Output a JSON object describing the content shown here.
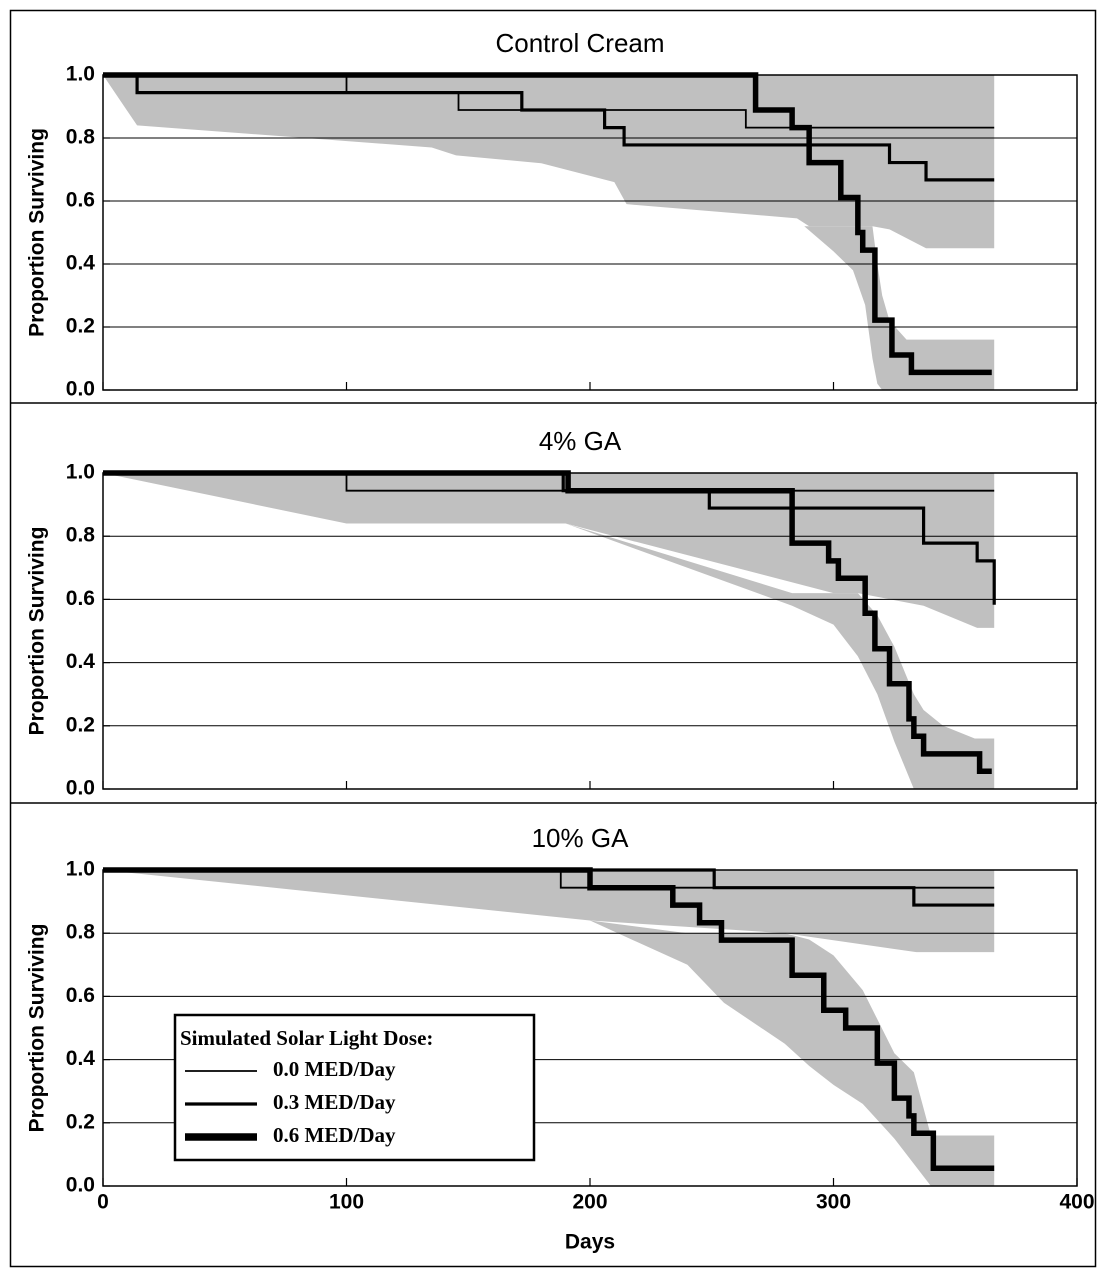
{
  "chart_data": [
    {
      "type": "step",
      "title": "Control Cream",
      "ylabel": "Proportion Surviving",
      "xlim": [
        0,
        400
      ],
      "xticks": [
        0,
        100,
        200,
        300,
        400
      ],
      "show_xtick_labels": false,
      "ylim": [
        0,
        1
      ],
      "yticks": [
        {
          "value": 0,
          "label": "0.0"
        },
        {
          "value": 0.2,
          "label": "0.2"
        },
        {
          "value": 0.4,
          "label": "0.4"
        },
        {
          "value": 0.6,
          "label": "0.6"
        },
        {
          "value": 0.8,
          "label": "0.8"
        },
        {
          "value": 1,
          "label": "1.0"
        }
      ],
      "grid": true,
      "band_color": "#c0c0c0",
      "bands": [
        {
          "x": [
            0,
            14,
            135,
            145,
            180,
            210,
            215,
            285,
            290,
            316,
            323,
            338,
            366
          ],
          "lower": [
            1,
            0.84,
            0.77,
            0.745,
            0.72,
            0.66,
            0.59,
            0.545,
            0.52,
            0.52,
            0.51,
            0.45,
            0.45
          ],
          "upper": [
            1,
            1,
            1,
            1,
            1,
            1,
            1,
            1,
            1,
            1,
            1,
            1,
            1
          ]
        },
        {
          "x": [
            288,
            300,
            308,
            313,
            316,
            318,
            320,
            323,
            330,
            366
          ],
          "lower": [
            0.52,
            0.44,
            0.38,
            0.27,
            0.1,
            0.02,
            0,
            0,
            0,
            0
          ],
          "upper": [
            0.52,
            0.52,
            0.52,
            0.52,
            0.52,
            0.4,
            0.3,
            0.22,
            0.16,
            0.16
          ]
        }
      ],
      "series": [
        {
          "color": "#000000",
          "width": 1.8,
          "x": [
            0,
            100,
            146,
            264,
            366
          ],
          "values": [
            1,
            0.944,
            0.889,
            0.833,
            0.833
          ]
        },
        {
          "color": "#000000",
          "width": 3.2,
          "x": [
            0,
            14,
            172,
            206,
            214,
            323,
            338,
            366
          ],
          "values": [
            1,
            0.944,
            0.889,
            0.833,
            0.778,
            0.722,
            0.667,
            0.667
          ]
        },
        {
          "color": "#000000",
          "width": 5.5,
          "x": [
            0,
            268,
            283,
            290,
            303,
            310,
            312,
            317,
            324,
            332,
            365
          ],
          "values": [
            1,
            0.889,
            0.833,
            0.722,
            0.611,
            0.5,
            0.444,
            0.222,
            0.111,
            0.056,
            0.056
          ]
        }
      ]
    },
    {
      "type": "step",
      "title": "4% GA",
      "ylabel": "Proportion Surviving",
      "xlim": [
        0,
        400
      ],
      "xticks": [
        0,
        100,
        200,
        300,
        400
      ],
      "show_xtick_labels": false,
      "ylim": [
        0,
        1
      ],
      "yticks": [
        {
          "value": 0,
          "label": "0.0"
        },
        {
          "value": 0.2,
          "label": "0.2"
        },
        {
          "value": 0.4,
          "label": "0.4"
        },
        {
          "value": 0.6,
          "label": "0.6"
        },
        {
          "value": 0.8,
          "label": "0.8"
        },
        {
          "value": 1,
          "label": "1.0"
        }
      ],
      "grid": true,
      "band_color": "#c0c0c0",
      "bands": [
        {
          "x": [
            0,
            100,
            190,
            300,
            310,
            337,
            359,
            366
          ],
          "lower": [
            1,
            0.84,
            0.84,
            0.62,
            0.62,
            0.58,
            0.51,
            0.51
          ],
          "upper": [
            1,
            1,
            1,
            1,
            1,
            1,
            1,
            1
          ]
        },
        {
          "x": [
            190,
            283,
            300,
            310,
            318,
            325,
            333,
            337,
            345,
            358,
            366
          ],
          "lower": [
            0.84,
            0.58,
            0.52,
            0.42,
            0.3,
            0.15,
            0,
            0,
            0,
            0,
            0
          ],
          "upper": [
            0.84,
            0.62,
            0.62,
            0.62,
            0.55,
            0.45,
            0.3,
            0.25,
            0.2,
            0.16,
            0.16
          ]
        }
      ],
      "series": [
        {
          "color": "#000000",
          "width": 1.8,
          "x": [
            0,
            100,
            366
          ],
          "values": [
            1,
            0.944,
            0.944
          ]
        },
        {
          "color": "#000000",
          "width": 3.2,
          "x": [
            0,
            189,
            249,
            337,
            359,
            366
          ],
          "values": [
            1,
            0.944,
            0.889,
            0.778,
            0.722,
            0.583
          ]
        },
        {
          "color": "#000000",
          "width": 5.5,
          "x": [
            0,
            191,
            283,
            298,
            302,
            313,
            317,
            323,
            331,
            333,
            337,
            360,
            365
          ],
          "values": [
            1,
            0.944,
            0.778,
            0.722,
            0.667,
            0.556,
            0.444,
            0.333,
            0.222,
            0.167,
            0.111,
            0.056,
            0.056
          ]
        }
      ]
    },
    {
      "type": "step",
      "title": "10% GA",
      "ylabel": "Proportion Surviving",
      "xlabel": "Days",
      "xlim": [
        0,
        400
      ],
      "xticks": [
        0,
        100,
        200,
        300,
        400
      ],
      "show_xtick_labels": true,
      "ylim": [
        0,
        1
      ],
      "yticks": [
        {
          "value": 0,
          "label": "0.0"
        },
        {
          "value": 0.2,
          "label": "0.2"
        },
        {
          "value": 0.4,
          "label": "0.4"
        },
        {
          "value": 0.6,
          "label": "0.6"
        },
        {
          "value": 0.8,
          "label": "0.8"
        },
        {
          "value": 1,
          "label": "1.0"
        }
      ],
      "grid": true,
      "band_color": "#c0c0c0",
      "legend": {
        "title": "Simulated Solar Light Dose:"
      },
      "bands": [
        {
          "x": [
            0,
            200,
            280,
            334,
            366
          ],
          "lower": [
            1,
            0.84,
            0.8,
            0.74,
            0.74
          ],
          "upper": [
            1,
            1,
            1,
            1,
            1
          ]
        },
        {
          "x": [
            200,
            240,
            255,
            280,
            290,
            300,
            312,
            325,
            333,
            340,
            366
          ],
          "lower": [
            0.84,
            0.7,
            0.58,
            0.45,
            0.38,
            0.32,
            0.26,
            0.15,
            0.07,
            0,
            0
          ],
          "upper": [
            0.84,
            0.8,
            0.8,
            0.8,
            0.78,
            0.73,
            0.62,
            0.42,
            0.36,
            0.16,
            0.16
          ]
        }
      ],
      "series": [
        {
          "name": "0.0 MED/Day",
          "color": "#000000",
          "width": 1.8,
          "x": [
            0,
            188,
            366
          ],
          "values": [
            1,
            0.944,
            0.944
          ]
        },
        {
          "name": "0.3 MED/Day",
          "color": "#000000",
          "width": 3.2,
          "x": [
            0,
            251,
            333,
            366
          ],
          "values": [
            1,
            0.944,
            0.889,
            0.889
          ]
        },
        {
          "name": "0.6 MED/Day",
          "color": "#000000",
          "width": 5.5,
          "x": [
            0,
            200,
            234,
            245,
            254,
            283,
            296,
            305,
            318,
            325,
            331,
            333,
            341,
            366
          ],
          "values": [
            1,
            0.944,
            0.889,
            0.833,
            0.778,
            0.667,
            0.556,
            0.5,
            0.389,
            0.278,
            0.222,
            0.167,
            0.056,
            0.056
          ]
        }
      ]
    }
  ]
}
